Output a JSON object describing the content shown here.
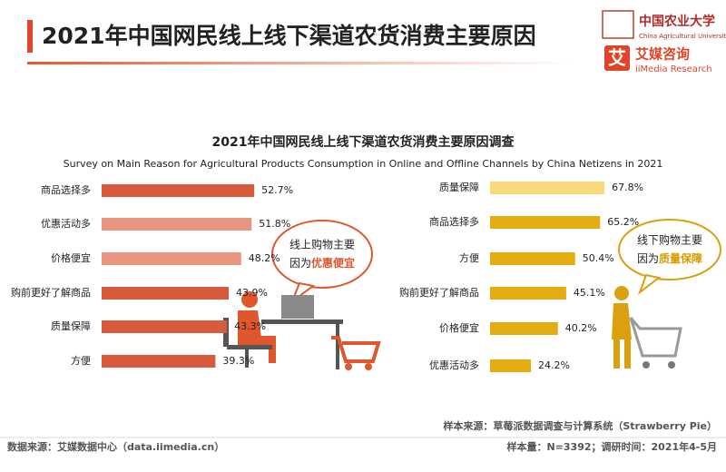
{
  "header": {
    "title": "2021年中国网民线上线下渠道农货消费主要原因",
    "logo_cau_cn": "中国农业大学",
    "logo_cau_en": "China Agricultural University",
    "logo_icon": "艾",
    "logo_iimedia_cn": "艾媒咨询",
    "logo_iimedia_en": "iiMedia Research"
  },
  "figure": {
    "title": "2021年中国网民线上线下渠道农货消费主要原因调查",
    "subtitle": "Survey on Main Reason for Agricultural Products Consumption in Online and Offline Channels by China Netizens in 2021"
  },
  "chart_data": [
    {
      "type": "bar",
      "orientation": "horizontal",
      "categories": [
        "商品选择多",
        "优惠活动多",
        "价格便宜",
        "购前更好了解商品",
        "质量保障",
        "方便"
      ],
      "values": [
        52.7,
        51.8,
        48.2,
        43.9,
        43.3,
        39.3
      ],
      "value_labels": [
        "52.7%",
        "51.8%",
        "48.2%",
        "43.9%",
        "43.3%",
        "39.3%"
      ],
      "colors": [
        "#d65a3b",
        "#e8967f",
        "#e8967f",
        "#d65a3b",
        "#d65a3b",
        "#d65a3b"
      ]
    },
    {
      "type": "bar",
      "orientation": "horizontal",
      "categories": [
        "质量保障",
        "商品选择多",
        "方便",
        "购前更好了解商品",
        "价格便宜",
        "优惠活动多"
      ],
      "values": [
        67.8,
        65.2,
        50.4,
        45.1,
        40.2,
        24.2
      ],
      "value_labels": [
        "67.8%",
        "65.2%",
        "50.4%",
        "45.1%",
        "40.2%",
        "24.2%"
      ],
      "colors": [
        "#f8da7c",
        "#e3ad12",
        "#e3ad12",
        "#e3ad12",
        "#e3ad12",
        "#e3ad12"
      ]
    }
  ],
  "annotations": [
    {
      "line1": "线上购物主要",
      "line2": "因为",
      "highlight": "优惠便宜",
      "highlight_color": "#e0572e"
    },
    {
      "line1": "线下购物主要",
      "line2": "因为",
      "highlight": "质量保障",
      "highlight_color": "#d99a00"
    }
  ],
  "footer": {
    "source": "数据来源：艾媒数据中心（data.iimedia.cn）",
    "sample_source": "样本来源：草莓派数据调查与计算系统（Strawberry Pie）",
    "sample_size": "样本量：N=3392；调研时间：2021年4-5月"
  }
}
